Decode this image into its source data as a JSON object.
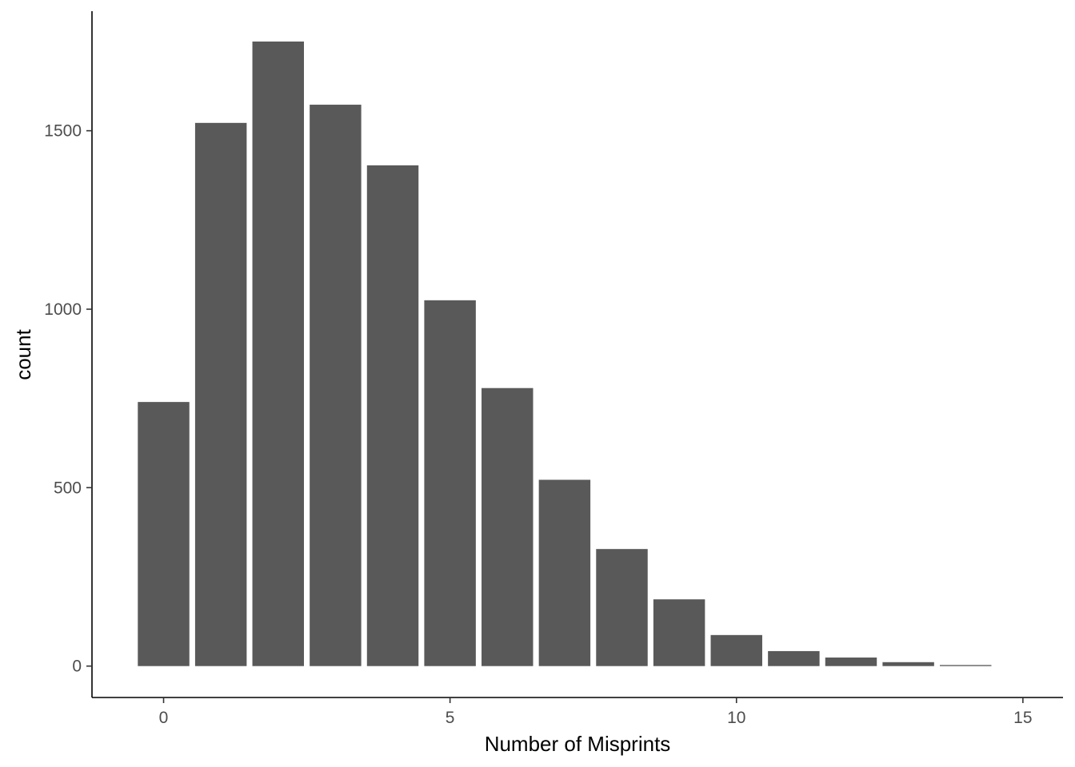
{
  "chart_data": {
    "type": "bar",
    "title": "",
    "xlabel": "Number of Misprints",
    "ylabel": "count",
    "x": [
      0,
      1,
      2,
      3,
      4,
      5,
      6,
      7,
      8,
      9,
      10,
      11,
      12,
      13,
      14
    ],
    "values": [
      740,
      1522,
      1750,
      1573,
      1403,
      1025,
      779,
      522,
      328,
      187,
      87,
      42,
      24,
      11,
      3
    ],
    "xlim": [
      -1.25,
      15.7
    ],
    "ylim": [
      -88,
      1835
    ],
    "xticks": [
      0,
      5,
      10,
      15
    ],
    "yticks": [
      0,
      500,
      1000,
      1500
    ],
    "xtick_labels": [
      "0",
      "5",
      "10",
      "15"
    ],
    "ytick_labels": [
      "0",
      "500",
      "1000",
      "1500"
    ],
    "bar_color": "#595959",
    "grid": false,
    "legend": "none"
  }
}
